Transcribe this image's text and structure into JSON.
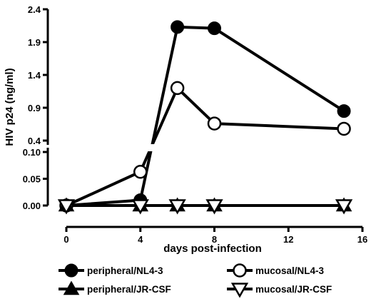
{
  "chart_data": {
    "type": "line",
    "xlabel": "days post-infection",
    "ylabel": "HIV p24 (ng/ml)",
    "x_ticks": [
      0,
      4,
      8,
      12,
      16
    ],
    "xlim": [
      0,
      16
    ],
    "y_axis_broken": true,
    "y_lower": {
      "ylim": [
        0,
        0.1
      ],
      "ticks": [
        "0.00",
        "0.05",
        "0.10"
      ]
    },
    "y_upper": {
      "ylim": [
        0.4,
        2.4
      ],
      "ticks": [
        "0.4",
        "0.9",
        "1.4",
        "1.9",
        "2.4"
      ]
    },
    "legend_placement": "bottom",
    "series": [
      {
        "name": "peripheral/NL4-3",
        "marker": "filled-circle",
        "x": [
          0,
          4,
          6,
          8,
          15
        ],
        "y": [
          0,
          0.01,
          2.13,
          2.11,
          0.85
        ]
      },
      {
        "name": "mucosal/NL4-3",
        "marker": "open-circle",
        "x": [
          0,
          4,
          6,
          8,
          15
        ],
        "y": [
          0,
          0.063,
          1.2,
          0.66,
          0.58
        ]
      },
      {
        "name": "peripheral/JR-CSF",
        "marker": "filled-triangle-up",
        "x": [
          0,
          4,
          6,
          8,
          15
        ],
        "y": [
          0,
          0,
          0,
          0,
          0
        ]
      },
      {
        "name": "mucosal/JR-CSF",
        "marker": "open-triangle-down",
        "x": [
          0,
          4,
          6,
          8,
          15
        ],
        "y": [
          0,
          0,
          0,
          0,
          0
        ]
      }
    ]
  }
}
